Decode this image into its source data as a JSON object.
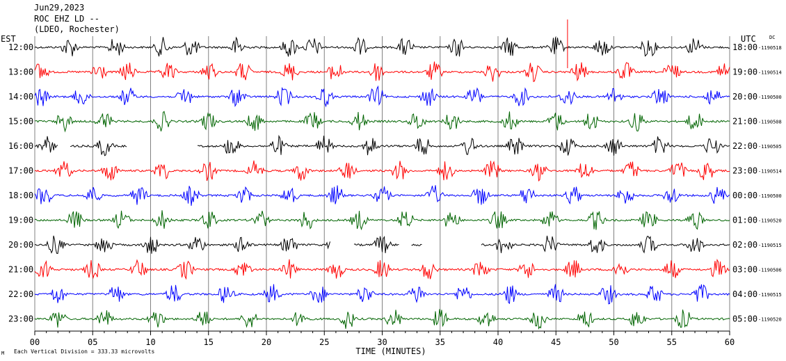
{
  "header": {
    "date": "Jun29,2023",
    "station": "ROC EHZ LD --",
    "location": "(LDEO, Rochester)"
  },
  "left_axis_label": "EST",
  "right_axis_label": "UTC",
  "dc_label": "DC",
  "footer": {
    "scale_label": "Each Vertical Division = 333.33 microvolts",
    "mark": "M"
  },
  "colors": {
    "black": "#000000",
    "red": "#ff0000",
    "blue": "#0000ff",
    "green": "#006400",
    "grid": "#808080",
    "spike": "#ff0000"
  },
  "chart_data": {
    "type": "line",
    "xlabel": "TIME (MINUTES)",
    "xlim": [
      0,
      60
    ],
    "x_ticks": [
      {
        "value": 0,
        "label": "00"
      },
      {
        "value": 5,
        "label": "05"
      },
      {
        "value": 10,
        "label": "10"
      },
      {
        "value": 15,
        "label": "15"
      },
      {
        "value": 20,
        "label": "20"
      },
      {
        "value": 25,
        "label": "25"
      },
      {
        "value": 30,
        "label": "30"
      },
      {
        "value": 35,
        "label": "35"
      },
      {
        "value": 40,
        "label": "40"
      },
      {
        "value": 45,
        "label": "45"
      },
      {
        "value": 50,
        "label": "50"
      },
      {
        "value": 55,
        "label": "55"
      },
      {
        "value": 60,
        "label": "60"
      }
    ],
    "grid": true,
    "red_spike": {
      "row": 0,
      "minute": 46
    },
    "rows": [
      {
        "est": "12:00",
        "utc": "18:00",
        "dc": "-1190518",
        "color": "black",
        "bursts": [
          3,
          7,
          11,
          13.5,
          17.5,
          22,
          24,
          28,
          32,
          36.5,
          41,
          45,
          49,
          53,
          57
        ],
        "gaps": []
      },
      {
        "est": "13:00",
        "utc": "19:00",
        "dc": "-1190514",
        "color": "red",
        "bursts": [
          0.5,
          5.5,
          8,
          11.5,
          15,
          18,
          22,
          26,
          29.5,
          34.5,
          39.5,
          43,
          47,
          51,
          55,
          59.5
        ],
        "gaps": []
      },
      {
        "est": "14:00",
        "utc": "20:00",
        "dc": "-1190500",
        "color": "blue",
        "bursts": [
          0.5,
          4,
          8,
          13,
          17.5,
          21.5,
          25,
          29.5,
          34,
          38,
          42,
          46,
          50,
          54,
          58.5
        ],
        "gaps": []
      },
      {
        "est": "15:00",
        "utc": "21:00",
        "dc": "-1190508",
        "color": "green",
        "bursts": [
          2.5,
          6,
          11,
          15,
          19,
          24,
          28,
          33,
          36,
          41,
          45,
          48,
          52,
          57
        ],
        "gaps": []
      },
      {
        "est": "16:00",
        "utc": "22:00",
        "dc": "-1190505",
        "color": "black",
        "bursts": [
          1,
          6,
          17,
          21,
          25,
          29,
          33.5,
          37.5,
          41.5,
          46,
          50,
          54,
          58.5
        ],
        "gaps": [
          [
            2,
            3
          ],
          [
            8,
            14
          ]
        ]
      },
      {
        "est": "17:00",
        "utc": "23:00",
        "dc": "-1190514",
        "color": "red",
        "bursts": [
          2.5,
          6.5,
          11,
          15,
          19,
          23,
          27,
          31.5,
          35.5,
          39.5,
          43.5,
          47.5,
          51.5,
          55.5,
          58
        ],
        "gaps": []
      },
      {
        "est": "18:00",
        "utc": "00:00",
        "dc": "-1190500",
        "color": "blue",
        "bursts": [
          0.8,
          5,
          9,
          13.5,
          18,
          22,
          26,
          30,
          34.5,
          38.5,
          42.5,
          46.5,
          51,
          55,
          59
        ],
        "gaps": []
      },
      {
        "est": "19:00",
        "utc": "01:00",
        "dc": "-1190520",
        "color": "green",
        "bursts": [
          3.5,
          7.5,
          11,
          15,
          19.5,
          23.5,
          28,
          32,
          36,
          40,
          44.5,
          48.5,
          53,
          57
        ],
        "gaps": []
      },
      {
        "est": "20:00",
        "utc": "02:00",
        "dc": "-1190515",
        "color": "black",
        "bursts": [
          1.8,
          6,
          10,
          14,
          18,
          22,
          26,
          30,
          40.5,
          44.5,
          48.5,
          53,
          57
        ],
        "gaps": [
          [
            25.5,
            27.5
          ],
          [
            31.5,
            32.5
          ],
          [
            33.5,
            38.5
          ]
        ]
      },
      {
        "est": "21:00",
        "utc": "03:00",
        "dc": "-1190506",
        "color": "red",
        "bursts": [
          0.8,
          5,
          9,
          13,
          18,
          22,
          26,
          30,
          34,
          38.5,
          42.5,
          46.5,
          50.5,
          55,
          59
        ],
        "gaps": []
      },
      {
        "est": "22:00",
        "utc": "04:00",
        "dc": "-1190515",
        "color": "blue",
        "bursts": [
          2,
          7,
          12,
          16.5,
          20.5,
          24.5,
          28.5,
          33,
          37,
          41,
          45,
          49.5,
          53.5,
          57.5
        ],
        "gaps": []
      },
      {
        "est": "23:00",
        "utc": "05:00",
        "dc": "-1190520",
        "color": "green",
        "bursts": [
          2,
          6,
          10.5,
          14.5,
          18.5,
          23,
          27,
          31,
          35,
          39,
          43.5,
          47.5,
          52,
          56
        ],
        "gaps": []
      }
    ]
  }
}
